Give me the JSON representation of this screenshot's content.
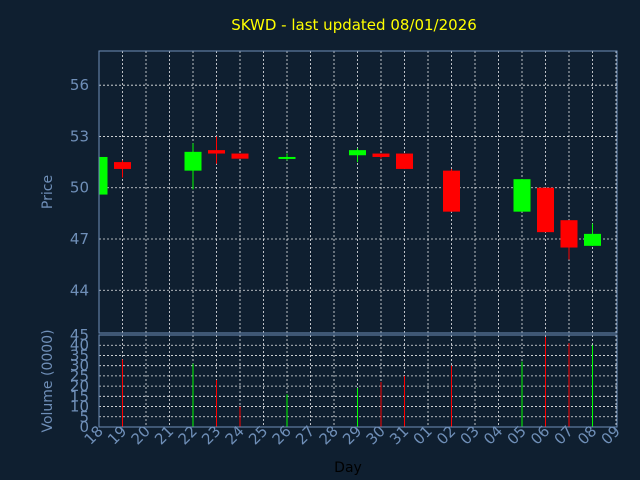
{
  "chart_data": {
    "type": "candlestick",
    "title": "SKWD - last updated 08/01/2026",
    "xlabel": "Day",
    "colors": {
      "background": "#0f1f30",
      "up": "#00ff00",
      "down": "#ff0000",
      "grid": "#ffffff",
      "axis_text": "#6f8fb8",
      "title": "#ffff00",
      "xlabel": "#000000"
    },
    "price_panel": {
      "ylabel": "Price",
      "ylim": [
        41.5,
        58
      ],
      "yticks": [
        44,
        47,
        50,
        53,
        56
      ],
      "candles": [
        {
          "open": 49.6,
          "close": 51.8,
          "high": 51.8,
          "low": 49.6
        },
        {
          "open": 51.5,
          "close": 51.1,
          "high": 51.6,
          "low": 50.6
        },
        null,
        null,
        {
          "open": 51.0,
          "close": 52.1,
          "high": 52.6,
          "low": 49.9
        },
        {
          "open": 52.2,
          "close": 52.0,
          "high": 53.0,
          "low": 51.4
        },
        {
          "open": 52.0,
          "close": 51.7,
          "high": 52.0,
          "low": 51.7
        },
        null,
        {
          "open": 51.8,
          "close": 51.8,
          "high": 52.0,
          "low": 51.6
        },
        null,
        null,
        {
          "open": 51.9,
          "close": 52.2,
          "high": 52.3,
          "low": 51.5
        },
        {
          "open": 52.0,
          "close": 51.8,
          "high": 52.0,
          "low": 51.7
        },
        {
          "open": 52.0,
          "close": 51.1,
          "high": 52.0,
          "low": 51.1
        },
        null,
        {
          "open": 51.0,
          "close": 48.6,
          "high": 51.1,
          "low": 48.6
        },
        null,
        null,
        {
          "open": 48.6,
          "close": 50.5,
          "high": 50.5,
          "low": 48.6
        },
        {
          "open": 50.0,
          "close": 47.4,
          "high": 50.0,
          "low": 47.4
        },
        {
          "open": 48.1,
          "close": 46.5,
          "high": 48.1,
          "low": 45.8
        },
        {
          "open": 46.6,
          "close": 47.3,
          "high": 47.9,
          "low": 46.6
        },
        null
      ]
    },
    "volume_panel": {
      "ylabel": "Volume (0000)",
      "ylim": [
        0,
        45
      ],
      "yticks": [
        0,
        5,
        10,
        15,
        20,
        25,
        30,
        35,
        40,
        45
      ],
      "volumes": [
        null,
        33,
        null,
        null,
        31,
        23,
        10,
        null,
        16,
        null,
        null,
        19,
        22,
        25,
        null,
        30,
        null,
        null,
        32,
        44,
        41,
        40,
        null
      ]
    },
    "categories": [
      "18",
      "19",
      "20",
      "21",
      "22",
      "23",
      "24",
      "25",
      "26",
      "27",
      "28",
      "29",
      "30",
      "31",
      "01",
      "02",
      "03",
      "04",
      "05",
      "06",
      "07",
      "08",
      "09"
    ]
  }
}
